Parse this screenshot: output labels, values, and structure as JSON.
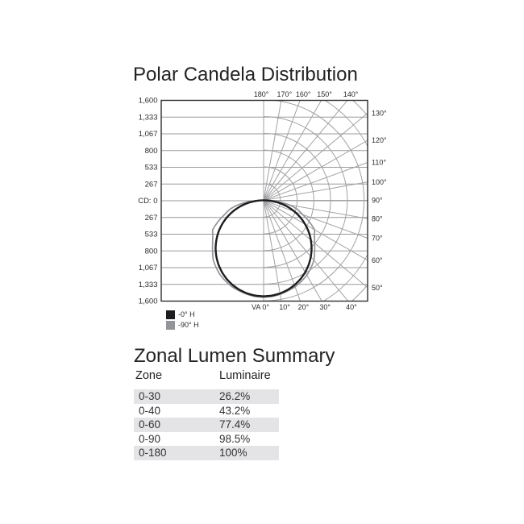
{
  "chart_data": {
    "type": "polar",
    "title": "Polar Candela Distribution",
    "radial_tick_labels": [
      "1,600",
      "1,333",
      "1,067",
      "800",
      "533",
      "267",
      "CD: 0",
      "267",
      "533",
      "800",
      "1,067",
      "1,333",
      "1,600"
    ],
    "radial_axis_max": 1600,
    "ring_step_cd": 267,
    "grid_color": "#a2a2a5",
    "hgrid_color": "#98989b",
    "border_color": "#2e2e2e",
    "tick_color": "#2b2b2b",
    "angle_labels": {
      "top": [
        {
          "text": "180°",
          "deg": 180
        },
        {
          "text": "170°",
          "deg": 170
        },
        {
          "text": "160°",
          "deg": 160
        },
        {
          "text": "150°",
          "deg": 150
        },
        {
          "text": "140°",
          "deg": 140
        }
      ],
      "right": [
        {
          "text": "130°",
          "deg": 130
        },
        {
          "text": "120°",
          "deg": 120
        },
        {
          "text": "110°",
          "deg": 110
        },
        {
          "text": "100°",
          "deg": 100
        },
        {
          "text": "90°",
          "deg": 90
        },
        {
          "text": "80°",
          "deg": 80
        },
        {
          "text": "70°",
          "deg": 70
        },
        {
          "text": "60°",
          "deg": 60
        },
        {
          "text": "50°",
          "deg": 50
        }
      ],
      "bottom": [
        {
          "text": "VA 0°",
          "deg": 0
        },
        {
          "text": "10°",
          "deg": 10
        },
        {
          "text": "20°",
          "deg": 20
        },
        {
          "text": "30°",
          "deg": 30
        },
        {
          "text": "40°",
          "deg": 40
        }
      ]
    },
    "series": [
      {
        "name": "-0° H",
        "color": "#1d1d1f",
        "angles_deg": [
          0,
          5,
          10,
          15,
          20,
          25,
          30,
          35,
          40,
          45,
          50,
          55,
          60,
          65,
          70,
          75,
          80,
          85,
          90
        ],
        "candela": [
          1530,
          1524,
          1507,
          1478,
          1438,
          1387,
          1325,
          1253,
          1172,
          1082,
          983,
          878,
          765,
          647,
          523,
          396,
          266,
          133,
          0
        ]
      },
      {
        "name": "-90° H",
        "color": "#929497",
        "angles_deg": [
          0,
          5,
          10,
          15,
          20,
          25,
          30,
          35,
          40,
          45,
          50,
          55,
          60,
          65,
          70,
          75,
          80,
          85,
          90
        ],
        "candela": [
          1545,
          1540,
          1522,
          1495,
          1468,
          1425,
          1378,
          1315,
          1248,
          1150,
          1060,
          988,
          938,
          800,
          660,
          558,
          420,
          225,
          0
        ]
      }
    ],
    "legend": [
      {
        "label": "-0° H",
        "color": "#1d1d1f"
      },
      {
        "label": "-90° H",
        "color": "#929497"
      }
    ]
  },
  "zonal_summary": {
    "title": "Zonal Lumen Summary",
    "columns": [
      "Zone",
      "Luminaire"
    ],
    "rows": [
      [
        "0-30",
        "26.2%"
      ],
      [
        "0-40",
        "43.2%"
      ],
      [
        "0-60",
        "77.4%"
      ],
      [
        "0-90",
        "98.5%"
      ],
      [
        "0-180",
        "100%"
      ]
    ],
    "row_shade_color": "#e4e4e6"
  }
}
